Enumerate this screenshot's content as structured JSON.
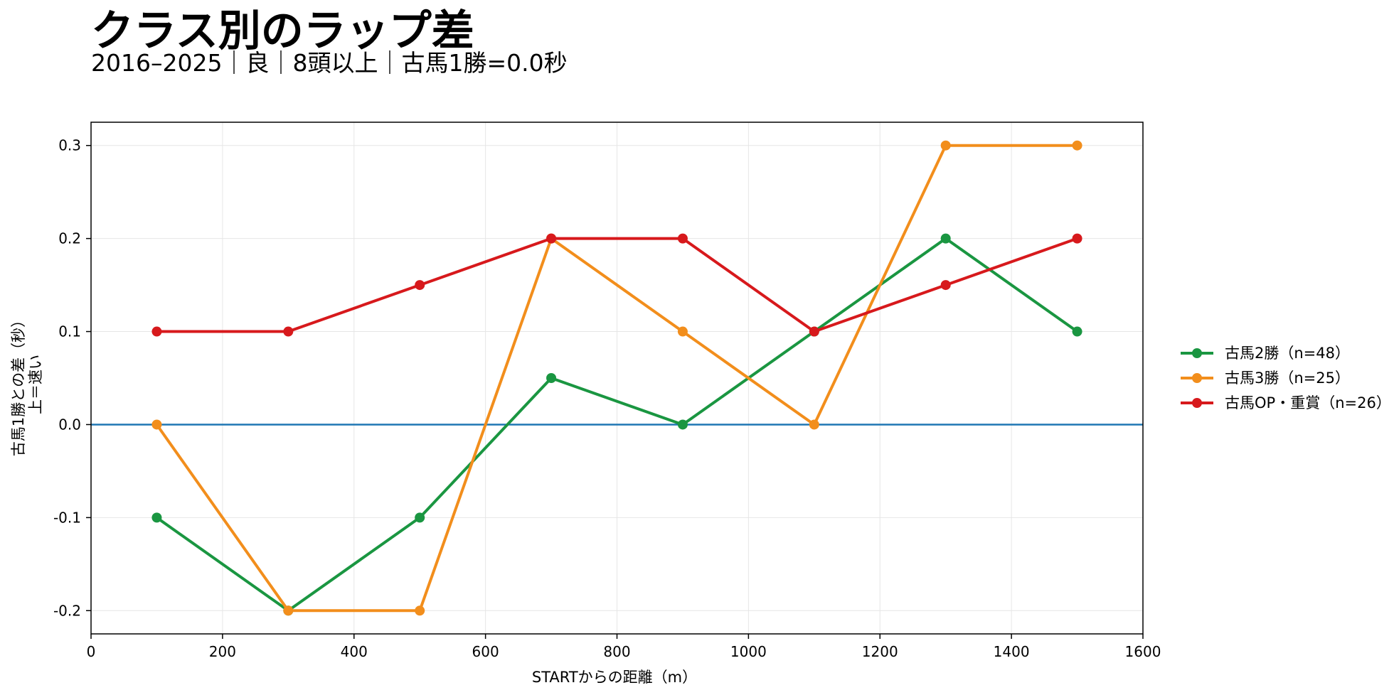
{
  "chart_data": {
    "type": "line",
    "title": "クラス別のラップ差",
    "subtitle": "2016–2025｜良｜8頭以上｜古馬1勝=0.0秒",
    "xlabel": "STARTからの距離（m）",
    "ylabel_lines": [
      "古馬1勝との差（秒）",
      "上＝速い"
    ],
    "xlim": [
      0,
      1600
    ],
    "ylim": [
      -0.225,
      0.325
    ],
    "xticks": [
      0,
      200,
      400,
      600,
      800,
      1000,
      1200,
      1400,
      1600
    ],
    "xtick_labels": [
      "0",
      "200",
      "400",
      "600",
      "800",
      "1000",
      "1200",
      "1400",
      "1600"
    ],
    "yticks": [
      -0.2,
      -0.1,
      0.0,
      0.1,
      0.2,
      0.3
    ],
    "ytick_labels": [
      "-0.2",
      "-0.1",
      "0.0",
      "0.1",
      "0.2",
      "0.3"
    ],
    "grid": true,
    "reference_line": {
      "y": 0.0,
      "color": "#1f77b4"
    },
    "legend_position": "right",
    "x": [
      100,
      300,
      500,
      700,
      900,
      1100,
      1300,
      1500
    ],
    "series": [
      {
        "name": "古馬2勝（n=48）",
        "color": "#1a9641",
        "values": [
          -0.1,
          -0.2,
          -0.1,
          0.05,
          0.0,
          0.1,
          0.2,
          0.1
        ]
      },
      {
        "name": "古馬3勝（n=25）",
        "color": "#f28e1c",
        "values": [
          0.0,
          -0.2,
          -0.2,
          0.2,
          0.1,
          0.0,
          0.3,
          0.3
        ]
      },
      {
        "name": "古馬OP・重賞（n=26）",
        "color": "#d7191c",
        "values": [
          0.1,
          0.1,
          0.15,
          0.2,
          0.2,
          0.1,
          0.15,
          0.2
        ]
      }
    ]
  }
}
